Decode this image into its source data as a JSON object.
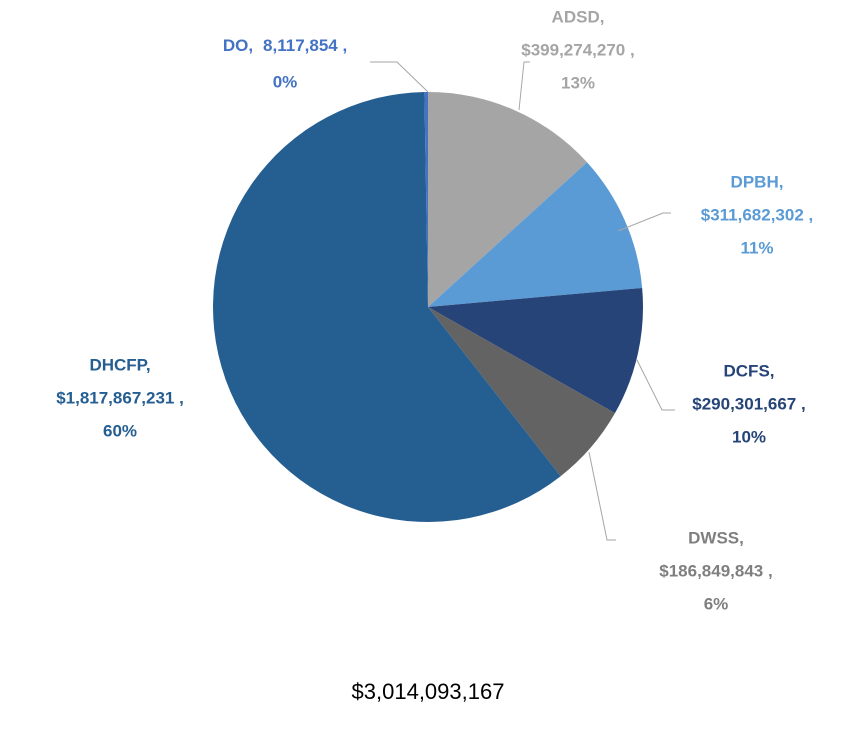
{
  "chart_data": {
    "type": "pie",
    "categories": [
      "ADSD,",
      "DPBH,",
      "DCFS,",
      "DWSS,",
      "DHCFP,",
      "DO,"
    ],
    "values": [
      399274270,
      311682302,
      290301667,
      186849843,
      1817867231,
      8117854
    ],
    "value_labels": [
      "$399,274,270 ,",
      "$311,682,302 ,",
      "$290,301,667 ,",
      "$186,849,843 ,",
      "$1,817,867,231 ,",
      "8,117,854 ,"
    ],
    "percent_labels": [
      "13%",
      "11%",
      "10%",
      "6%",
      "60%",
      "0%"
    ],
    "colors": [
      "#a5a5a5",
      "#5b9bd5",
      "#264478",
      "#636363",
      "#255e91",
      "#4472c4"
    ],
    "label_colors": [
      "#a5a5a5",
      "#5b9bd5",
      "#264478",
      "#7f7f7f",
      "#255e91",
      "#4472c4"
    ],
    "footer": "$3,014,093,167"
  }
}
